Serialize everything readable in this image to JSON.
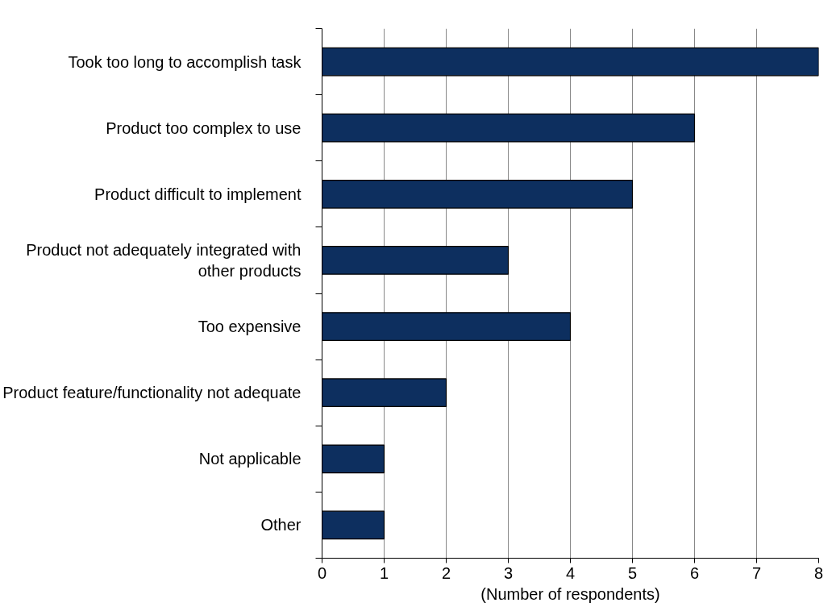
{
  "chart_data": {
    "type": "bar",
    "orientation": "horizontal",
    "xlabel": "(Number of respondents)",
    "categories": [
      "Took too long to accomplish task",
      "Product too complex to use",
      "Product difficult to implement",
      "Product not adequately integrated with other products",
      "Too expensive",
      "Product feature/functionality not adequate",
      "Not applicable",
      "Other"
    ],
    "values": [
      8,
      6,
      5,
      3,
      4,
      2,
      1,
      1
    ],
    "color": "#0d2f5f",
    "xlim": [
      0,
      8
    ],
    "xticks": [
      0,
      1,
      2,
      3,
      4,
      5,
      6,
      7,
      8
    ],
    "grid": "x"
  }
}
